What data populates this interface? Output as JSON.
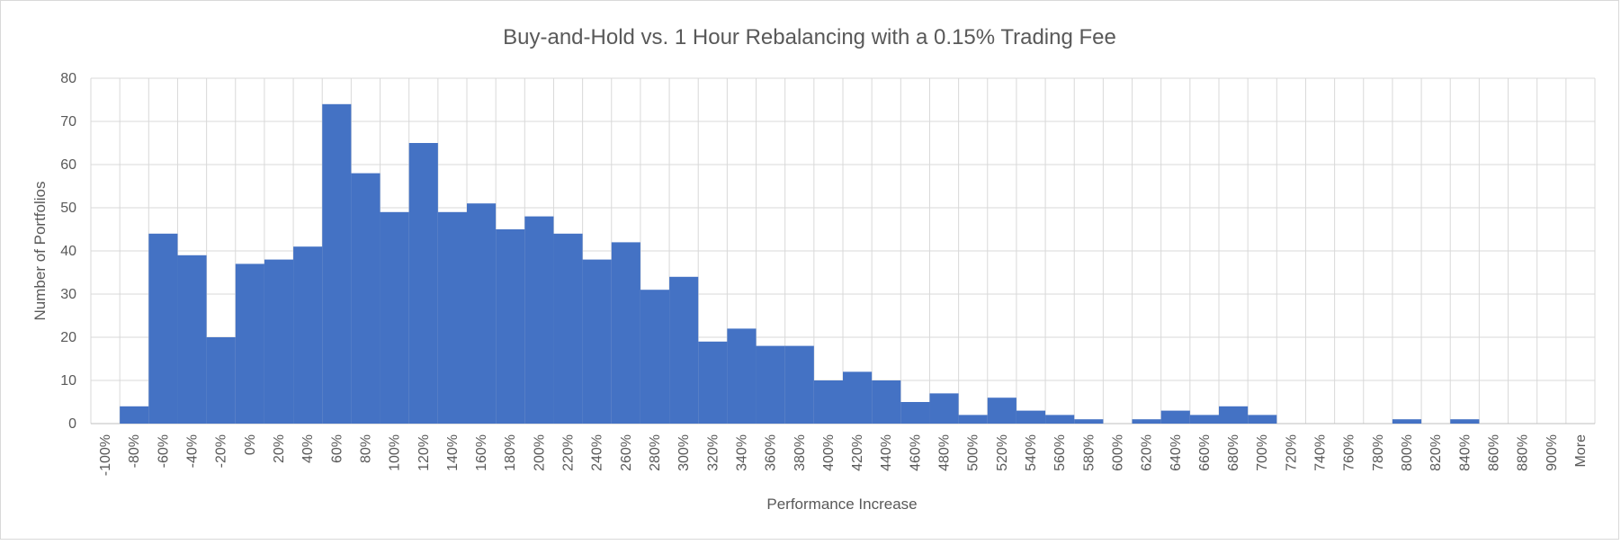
{
  "chart_data": {
    "type": "bar",
    "title": "Buy-and-Hold vs. 1 Hour Rebalancing with a 0.15% Trading Fee",
    "xlabel": "Performance Increase",
    "ylabel": "Number of Portfolios",
    "ylim": [
      0,
      80
    ],
    "yticks": [
      "0",
      "10",
      "20",
      "30",
      "40",
      "50",
      "60",
      "70",
      "80"
    ],
    "grid": true,
    "legend": "none",
    "bar_color": "#4472c4",
    "categories": [
      "-100%",
      "-80%",
      "-60%",
      "-40%",
      "-20%",
      "0%",
      "20%",
      "40%",
      "60%",
      "80%",
      "100%",
      "120%",
      "140%",
      "160%",
      "180%",
      "200%",
      "220%",
      "240%",
      "260%",
      "280%",
      "300%",
      "320%",
      "340%",
      "360%",
      "380%",
      "400%",
      "420%",
      "440%",
      "460%",
      "480%",
      "500%",
      "520%",
      "540%",
      "560%",
      "580%",
      "600%",
      "620%",
      "640%",
      "660%",
      "680%",
      "700%",
      "720%",
      "740%",
      "760%",
      "780%",
      "800%",
      "820%",
      "840%",
      "860%",
      "880%",
      "900%",
      "More"
    ],
    "values": [
      0,
      4,
      44,
      39,
      20,
      37,
      38,
      41,
      74,
      58,
      49,
      65,
      49,
      51,
      45,
      48,
      44,
      38,
      42,
      31,
      34,
      19,
      22,
      18,
      18,
      10,
      12,
      10,
      5,
      7,
      2,
      6,
      3,
      2,
      1,
      0,
      1,
      3,
      2,
      4,
      2,
      0,
      0,
      0,
      0,
      1,
      0,
      1,
      0,
      0,
      0,
      0
    ]
  }
}
